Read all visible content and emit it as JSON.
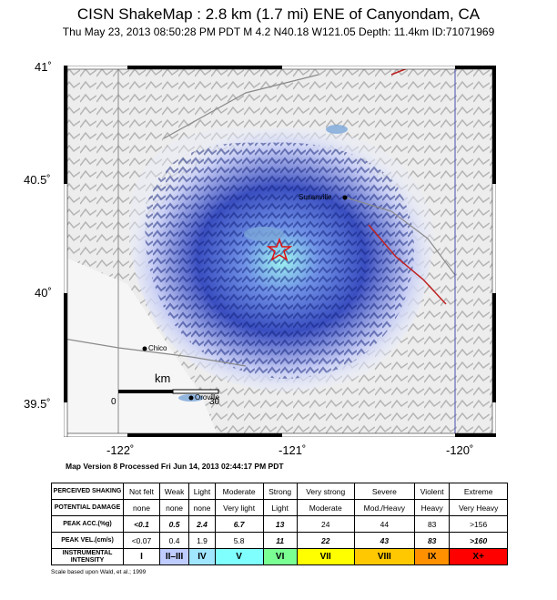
{
  "title": "CISN ShakeMap : 2.8 km (1.7 mi) ENE of Canyondam, CA",
  "subtitle": "Thu May 23, 2013 08:50:28 PM PDT   M 4.2   N40.18 W121.05   Depth: 11.4km   ID:71071969",
  "map": {
    "lat_ticks": [
      "41˚",
      "40.5˚",
      "40˚",
      "39.5˚"
    ],
    "lon_ticks": [
      "-122˚",
      "-121˚",
      "-120˚"
    ],
    "places": [
      "Susanville",
      "Chico",
      "Oroville"
    ],
    "scalebar": {
      "unit": "km",
      "start": "0",
      "end": "30"
    },
    "colors": {
      "ocean": "#ffffff",
      "shaking_light": "#a0a8f0",
      "shaking_dark": "#1a2a8c",
      "epicenter": "#e01010",
      "faults": "#c02020"
    }
  },
  "version_text": "Map Version 8 Processed Fri Jun 14, 2013 02:44:17 PM PDT",
  "legend": {
    "rows": [
      {
        "head": "PERCEIVED SHAKING",
        "cells": [
          "Not felt",
          "Weak",
          "Light",
          "Moderate",
          "Strong",
          "Very strong",
          "Severe",
          "Violent",
          "Extreme"
        ]
      },
      {
        "head": "POTENTIAL DAMAGE",
        "cells": [
          "none",
          "none",
          "none",
          "Very light",
          "Light",
          "Moderate",
          "Mod./Heavy",
          "Heavy",
          "Very Heavy"
        ]
      },
      {
        "head": "PEAK ACC.(%g)",
        "cells": [
          "<0.1",
          "0.5",
          "2.4",
          "6.7",
          "13",
          "24",
          "44",
          "83",
          ">156"
        ]
      },
      {
        "head": "PEAK VEL.(cm/s)",
        "cells": [
          "<0.07",
          "0.4",
          "1.9",
          "5.8",
          "11",
          "22",
          "43",
          "83",
          ">160"
        ]
      },
      {
        "head": "INSTRUMENTAL INTENSITY",
        "cells": [
          "I",
          "II–III",
          "IV",
          "V",
          "VI",
          "VII",
          "VIII",
          "IX",
          "X+"
        ]
      }
    ],
    "intensity_colors": [
      "#ffffff",
      "#bfccff",
      "#a0e6ff",
      "#80ffff",
      "#7aff93",
      "#ffff00",
      "#ffc800",
      "#ff9100",
      "#ff0000"
    ]
  },
  "footnote": "Scale based upon Wald, et al.; 1999"
}
